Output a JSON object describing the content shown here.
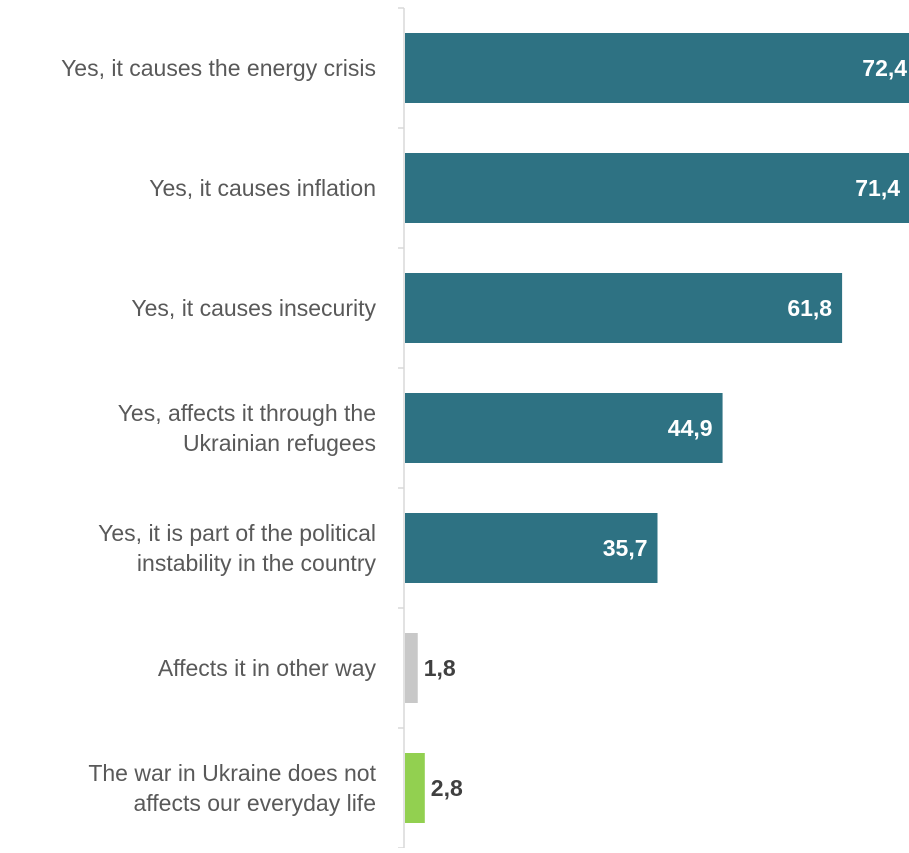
{
  "chart_data": {
    "type": "bar",
    "orientation": "horizontal",
    "categories": [
      [
        "Yes, it causes the energy crisis"
      ],
      [
        "Yes, it causes inflation"
      ],
      [
        "Yes, it causes insecurity"
      ],
      [
        "Yes, affects it through the",
        "Ukrainian refugees"
      ],
      [
        "Yes, it is part of the political",
        "instability in the country"
      ],
      [
        "Affects it in other way"
      ],
      [
        "The war in Ukraine does not",
        "affects our everyday life"
      ]
    ],
    "values": [
      72.4,
      71.4,
      61.8,
      44.9,
      35.7,
      1.8,
      2.8
    ],
    "value_labels": [
      "72,4",
      "71,4",
      "61,8",
      "44,9",
      "35,7",
      "1,8",
      "2,8"
    ],
    "bar_colors": [
      "#2e7283",
      "#2e7283",
      "#2e7283",
      "#2e7283",
      "#2e7283",
      "#c8c8c8",
      "#92d050"
    ],
    "axis_color": "#d9d9d9",
    "title": "",
    "xlabel": "",
    "ylabel": "",
    "xlim": [
      0,
      71.4
    ],
    "grid": false,
    "legend": "none"
  }
}
